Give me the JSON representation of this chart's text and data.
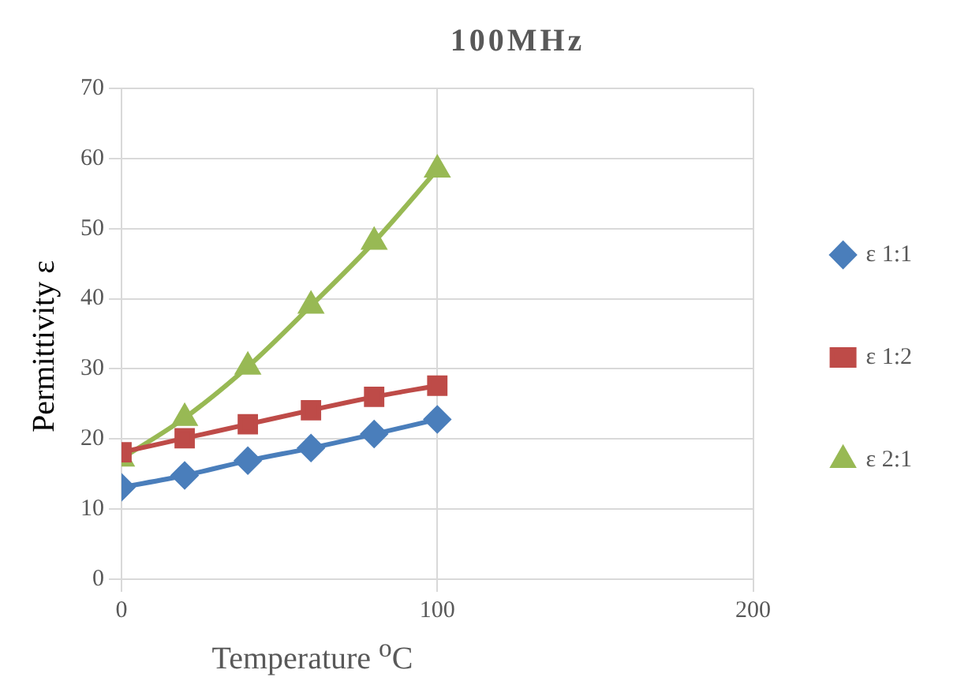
{
  "chart_data": {
    "type": "line",
    "title": "100MHz",
    "xlabel": "Temperature $^{o}$C",
    "ylabel": "Permittivity ε",
    "xlim": [
      0,
      200
    ],
    "xticks": [
      0,
      100,
      200
    ],
    "ylim": [
      0,
      70
    ],
    "yticks": [
      0,
      10,
      20,
      30,
      40,
      50,
      60,
      70
    ],
    "grid": true,
    "legend": "right",
    "series": [
      {
        "name": "ε 1:1",
        "color": "#4a7ebb",
        "marker": "diamond",
        "x": [
          0,
          20,
          40,
          60,
          80,
          100
        ],
        "values": [
          13.1,
          14.8,
          16.9,
          18.7,
          20.7,
          22.8
        ]
      },
      {
        "name": "ε 1:2",
        "color": "#be4b48",
        "marker": "square",
        "x": [
          0,
          20,
          40,
          60,
          80,
          100
        ],
        "values": [
          18.1,
          20.1,
          22.1,
          24.1,
          26.0,
          27.6
        ]
      },
      {
        "name": "ε 2:1",
        "color": "#98b954",
        "marker": "triangle",
        "x": [
          0,
          20,
          40,
          60,
          80,
          100
        ],
        "values": [
          17.2,
          23.0,
          30.3,
          39.0,
          48.1,
          58.4
        ]
      }
    ]
  }
}
